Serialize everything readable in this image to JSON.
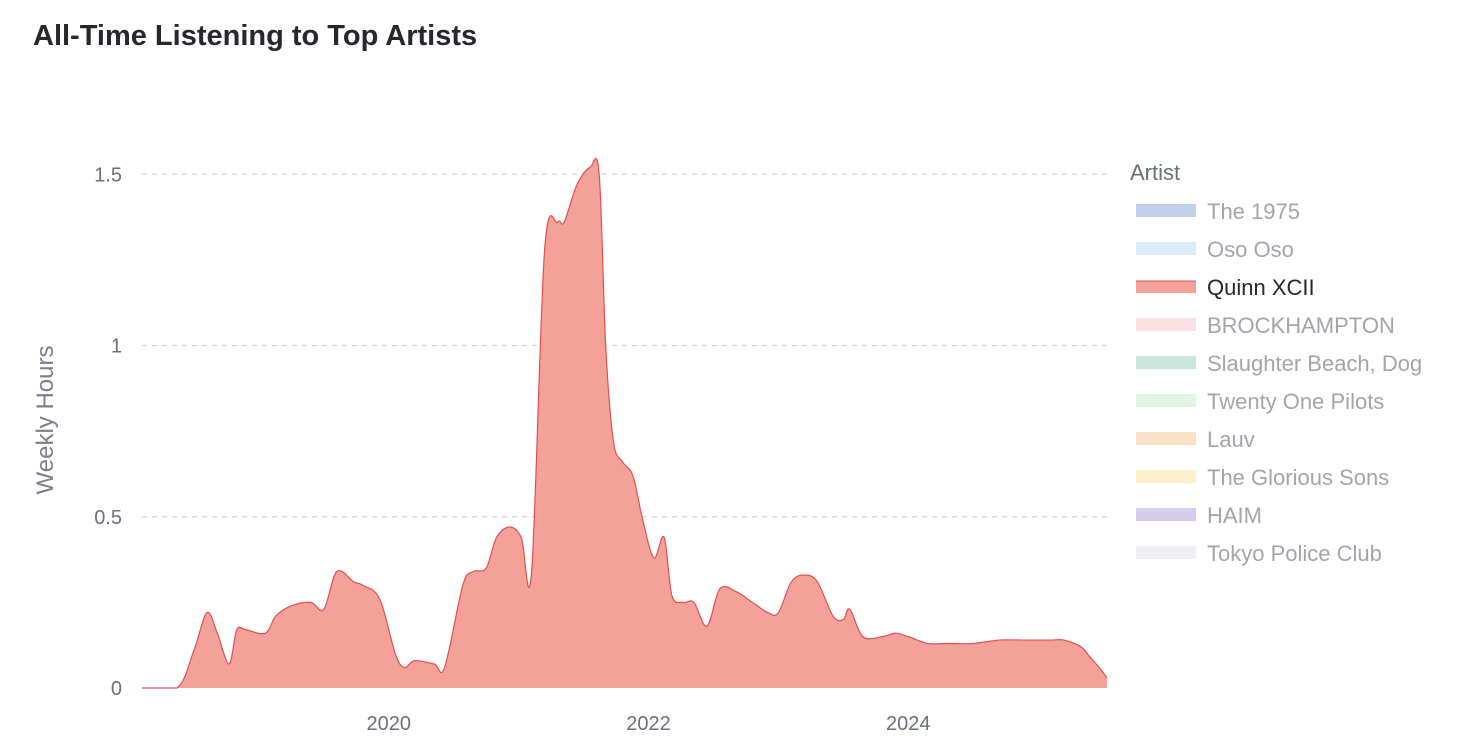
{
  "chart_data": {
    "type": "area",
    "title": "All-Time Listening to Top Artists",
    "ylabel": "Weekly Hours",
    "xlabel": "",
    "ylim": [
      0,
      1.6
    ],
    "yticks": [
      0,
      0.5,
      1,
      1.5
    ],
    "ytick_labels": [
      "0",
      "0.5",
      "1",
      "1.5"
    ],
    "xticks": [
      2020,
      2022,
      2024
    ],
    "xtick_labels": [
      "2020",
      "2022",
      "2024"
    ],
    "xlim": [
      2018.1,
      2025.53
    ],
    "grid": true,
    "legend": {
      "title": "Artist",
      "placement": "right",
      "highlighted": "Quinn XCII",
      "entries": [
        {
          "name": "The 1975",
          "color": "#c3d0ec"
        },
        {
          "name": "Oso Oso",
          "color": "#dcebfa"
        },
        {
          "name": "Quinn XCII",
          "color": "#f4a19a"
        },
        {
          "name": "BROCKHAMPTON",
          "color": "#fbe1e3"
        },
        {
          "name": "Slaughter Beach, Dog",
          "color": "#c9e6dc"
        },
        {
          "name": "Twenty One Pilots",
          "color": "#dff4e2"
        },
        {
          "name": "Lauv",
          "color": "#fbe0c8"
        },
        {
          "name": "The Glorious Sons",
          "color": "#fdf0cf"
        },
        {
          "name": "HAIM",
          "color": "#d6cdec"
        },
        {
          "name": "Tokyo Police Club",
          "color": "#eef0f3"
        }
      ]
    },
    "series": [
      {
        "name": "Quinn XCII",
        "color": "#f4a19a",
        "line_color": "#e0504f",
        "x": [
          2018.1,
          2018.37,
          2018.5,
          2018.6,
          2018.68,
          2018.77,
          2018.83,
          2018.9,
          2019.05,
          2019.13,
          2019.25,
          2019.4,
          2019.5,
          2019.6,
          2019.73,
          2019.8,
          2019.93,
          2020.05,
          2020.12,
          2020.2,
          2020.35,
          2020.43,
          2020.57,
          2020.65,
          2020.75,
          2020.83,
          2020.93,
          2021.02,
          2021.1,
          2021.2,
          2021.3,
          2021.35,
          2021.45,
          2021.55,
          2021.62,
          2021.67,
          2021.73,
          2021.8,
          2021.88,
          2021.95,
          2022.04,
          2022.12,
          2022.18,
          2022.27,
          2022.35,
          2022.45,
          2022.55,
          2022.68,
          2022.8,
          2022.92,
          2023.0,
          2023.1,
          2023.2,
          2023.3,
          2023.42,
          2023.5,
          2023.55,
          2023.65,
          2023.8,
          2023.9,
          2024.0,
          2024.15,
          2024.3,
          2024.5,
          2024.7,
          2024.9,
          2025.0,
          2025.1,
          2025.2,
          2025.33,
          2025.4,
          2025.47,
          2025.53
        ],
        "values": [
          0,
          0,
          0.11,
          0.22,
          0.16,
          0.07,
          0.17,
          0.17,
          0.16,
          0.21,
          0.24,
          0.25,
          0.23,
          0.34,
          0.31,
          0.3,
          0.26,
          0.1,
          0.06,
          0.08,
          0.07,
          0.06,
          0.3,
          0.34,
          0.35,
          0.44,
          0.47,
          0.44,
          0.34,
          1.28,
          1.36,
          1.36,
          1.47,
          1.52,
          1.5,
          1.0,
          0.72,
          0.66,
          0.62,
          0.5,
          0.38,
          0.44,
          0.27,
          0.25,
          0.25,
          0.18,
          0.29,
          0.28,
          0.25,
          0.22,
          0.22,
          0.31,
          0.33,
          0.31,
          0.21,
          0.2,
          0.23,
          0.15,
          0.15,
          0.16,
          0.15,
          0.13,
          0.13,
          0.13,
          0.14,
          0.14,
          0.14,
          0.14,
          0.14,
          0.12,
          0.09,
          0.06,
          0.03
        ]
      }
    ]
  }
}
